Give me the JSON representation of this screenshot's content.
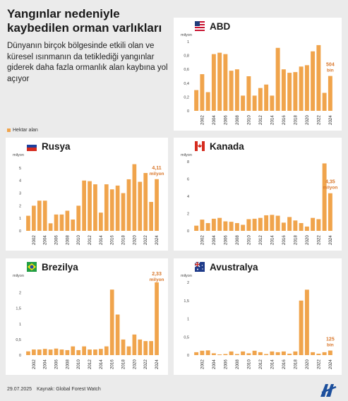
{
  "header": {
    "title": "Yangınlar nedeniyle kaybedilen orman varlıkları",
    "subtitle": "Dünyanın birçok bölgesinde etkili olan ve küresel ısınmanın da tetiklediği yangınlar giderek daha fazla ormanlık alan kaybına yol açıyor"
  },
  "legend": {
    "label": "Hektar alan"
  },
  "footer": {
    "date": "29.07.2025",
    "source": "Kaynak: Global Forest Watch"
  },
  "colors": {
    "bar": "#f0a44c",
    "highlight": "#d9772b",
    "background": "#ebebeb",
    "panel": "#ffffff"
  },
  "chart_data": [
    {
      "type": "bar",
      "name": "ABD",
      "flag": "us-flag-icon",
      "x": [
        2001,
        2002,
        2003,
        2004,
        2005,
        2006,
        2007,
        2008,
        2009,
        2010,
        2011,
        2012,
        2013,
        2014,
        2015,
        2016,
        2017,
        2018,
        2019,
        2020,
        2021,
        2022,
        2023,
        2024
      ],
      "values": [
        0.3,
        0.53,
        0.27,
        0.82,
        0.84,
        0.82,
        0.58,
        0.6,
        0.22,
        0.5,
        0.22,
        0.33,
        0.38,
        0.22,
        0.91,
        0.6,
        0.55,
        0.56,
        0.64,
        0.66,
        0.86,
        0.95,
        0.26,
        0.504
      ],
      "unit_label": "milyon",
      "yticks": [
        0,
        0.2,
        0.4,
        0.6,
        0.8,
        1
      ],
      "ylim": [
        0,
        1
      ],
      "xticks": [
        2002,
        2004,
        2006,
        2008,
        2010,
        2012,
        2014,
        2016,
        2018,
        2020,
        2022,
        2024
      ],
      "annotation": {
        "value": "504",
        "unit": "bin"
      }
    },
    {
      "type": "bar",
      "name": "Rusya",
      "flag": "russia-flag-icon",
      "x": [
        2001,
        2002,
        2003,
        2004,
        2005,
        2006,
        2007,
        2008,
        2009,
        2010,
        2011,
        2012,
        2013,
        2014,
        2015,
        2016,
        2017,
        2018,
        2019,
        2020,
        2021,
        2022,
        2023,
        2024
      ],
      "values": [
        1.2,
        2.0,
        2.4,
        2.4,
        0.6,
        1.3,
        1.3,
        1.6,
        0.9,
        2.0,
        4.0,
        3.95,
        3.7,
        1.45,
        3.7,
        3.3,
        3.6,
        3.0,
        4.1,
        5.3,
        3.9,
        4.6,
        2.3,
        4.11
      ],
      "unit_label": "milyon",
      "yticks": [
        0,
        1,
        2,
        3,
        4,
        5
      ],
      "ylim": [
        0,
        5.5
      ],
      "xticks": [
        2002,
        2004,
        2006,
        2008,
        2010,
        2012,
        2014,
        2016,
        2018,
        2020,
        2022,
        2024
      ],
      "annotation": {
        "value": "4,11",
        "unit": "milyon"
      }
    },
    {
      "type": "bar",
      "name": "Kanada",
      "flag": "canada-flag-icon",
      "x": [
        2001,
        2002,
        2003,
        2004,
        2005,
        2006,
        2007,
        2008,
        2009,
        2010,
        2011,
        2012,
        2013,
        2014,
        2015,
        2016,
        2017,
        2018,
        2019,
        2020,
        2021,
        2022,
        2023,
        2024
      ],
      "values": [
        0.6,
        1.3,
        0.9,
        1.4,
        1.5,
        1.1,
        1.05,
        0.9,
        0.7,
        1.35,
        1.4,
        1.5,
        1.8,
        1.85,
        1.75,
        0.95,
        1.6,
        1.2,
        0.9,
        0.5,
        1.5,
        1.35,
        7.8,
        4.35
      ],
      "unit_label": "milyon",
      "yticks": [
        0,
        2,
        4,
        6,
        8
      ],
      "ylim": [
        0,
        8
      ],
      "xticks": [
        2002,
        2004,
        2006,
        2008,
        2010,
        2012,
        2014,
        2016,
        2018,
        2020,
        2022,
        2024
      ],
      "annotation": {
        "value": "4,35",
        "unit": "milyon"
      }
    },
    {
      "type": "bar",
      "name": "Brezilya",
      "flag": "brazil-flag-icon",
      "x": [
        2001,
        2002,
        2003,
        2004,
        2005,
        2006,
        2007,
        2008,
        2009,
        2010,
        2011,
        2012,
        2013,
        2014,
        2015,
        2016,
        2017,
        2018,
        2019,
        2020,
        2021,
        2022,
        2023,
        2024
      ],
      "values": [
        0.12,
        0.18,
        0.18,
        0.2,
        0.18,
        0.21,
        0.18,
        0.16,
        0.28,
        0.16,
        0.28,
        0.18,
        0.18,
        0.2,
        0.28,
        2.1,
        1.3,
        0.5,
        0.28,
        0.66,
        0.5,
        0.45,
        0.45,
        2.33
      ],
      "unit_label": "milyon",
      "yticks": [
        0,
        0.5,
        1,
        1.5,
        2
      ],
      "ylim": [
        0,
        2.33
      ],
      "xticks": [
        2002,
        2004,
        2006,
        2008,
        2010,
        2012,
        2014,
        2016,
        2018,
        2020,
        2022,
        2024
      ],
      "annotation": {
        "value": "2,33",
        "unit": "milyon"
      }
    },
    {
      "type": "bar",
      "name": "Avustralya",
      "flag": "australia-flag-icon",
      "x": [
        2001,
        2002,
        2003,
        2004,
        2005,
        2006,
        2007,
        2008,
        2009,
        2010,
        2011,
        2012,
        2013,
        2014,
        2015,
        2016,
        2017,
        2018,
        2019,
        2020,
        2021,
        2022,
        2023,
        2024
      ],
      "values": [
        0.08,
        0.12,
        0.13,
        0.05,
        0.02,
        0.03,
        0.1,
        0.03,
        0.1,
        0.05,
        0.12,
        0.08,
        0.03,
        0.1,
        0.08,
        0.1,
        0.04,
        0.1,
        1.5,
        1.8,
        0.08,
        0.04,
        0.08,
        0.125
      ],
      "unit_label": "milyon",
      "yticks": [
        0,
        0.5,
        1,
        1.5,
        2
      ],
      "ylim": [
        0,
        2
      ],
      "xticks": [
        2002,
        2004,
        2006,
        2008,
        2010,
        2012,
        2014,
        2016,
        2018,
        2020,
        2022,
        2024
      ],
      "annotation": {
        "value": "125",
        "unit": "bin"
      }
    }
  ]
}
